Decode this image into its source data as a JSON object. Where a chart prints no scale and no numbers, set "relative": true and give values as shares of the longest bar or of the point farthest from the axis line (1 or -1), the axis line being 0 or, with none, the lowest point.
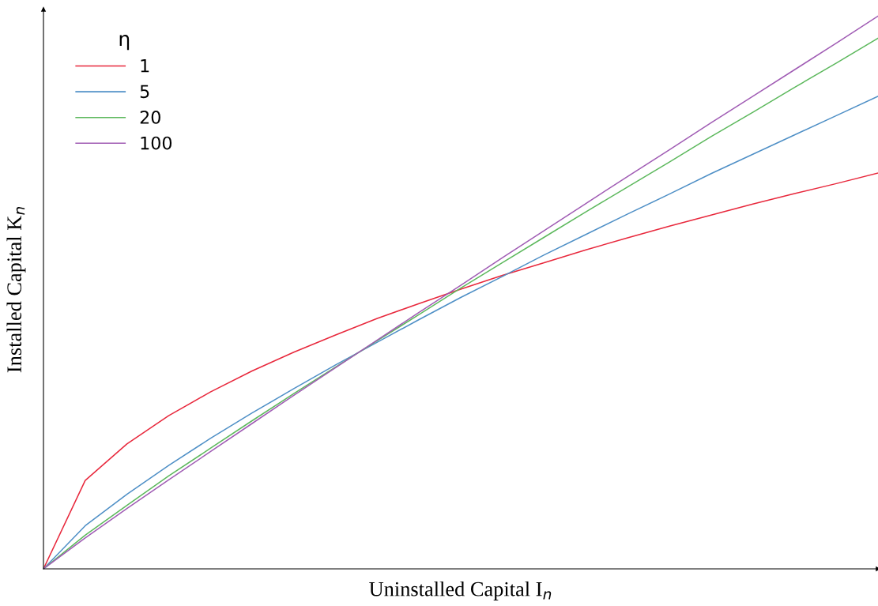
{
  "chart_data": {
    "type": "line",
    "relative": true,
    "xlabel": "Uninstalled Capital I$_{n}$",
    "ylabel": "Installed Capital K$_{n}$",
    "legend_title": "η",
    "legend": "top left",
    "grid": false,
    "categories": [
      null,
      null,
      null,
      null,
      null,
      null,
      null,
      null,
      null,
      null,
      null,
      null,
      null,
      null,
      null,
      null,
      null,
      null,
      null,
      null,
      null
    ],
    "series": [
      {
        "name": "1",
        "color": "#e8283c",
        "values": [
          0,
          0.16,
          0.226,
          0.277,
          0.32,
          0.358,
          0.392,
          0.423,
          0.453,
          0.48,
          0.506,
          0.531,
          0.554,
          0.577,
          0.599,
          0.62,
          0.64,
          0.66,
          0.679,
          0.697,
          0.716
        ]
      },
      {
        "name": "5",
        "color": "#4e8fc6",
        "values": [
          0,
          0.078,
          0.135,
          0.187,
          0.236,
          0.282,
          0.326,
          0.369,
          0.41,
          0.451,
          0.491,
          0.529,
          0.568,
          0.605,
          0.642,
          0.678,
          0.715,
          0.75,
          0.785,
          0.82,
          0.855
        ]
      },
      {
        "name": "20",
        "color": "#5cb85c",
        "values": [
          0,
          0.061,
          0.115,
          0.168,
          0.218,
          0.268,
          0.317,
          0.365,
          0.413,
          0.46,
          0.508,
          0.554,
          0.6,
          0.646,
          0.691,
          0.736,
          0.782,
          0.826,
          0.871,
          0.915,
          0.96
        ]
      },
      {
        "name": "100",
        "color": "#a05cb4",
        "values": [
          0,
          0.056,
          0.109,
          0.161,
          0.212,
          0.263,
          0.314,
          0.364,
          0.414,
          0.464,
          0.513,
          0.563,
          0.612,
          0.661,
          0.71,
          0.758,
          0.807,
          0.855,
          0.903,
          0.951,
          1.0
        ]
      }
    ]
  }
}
